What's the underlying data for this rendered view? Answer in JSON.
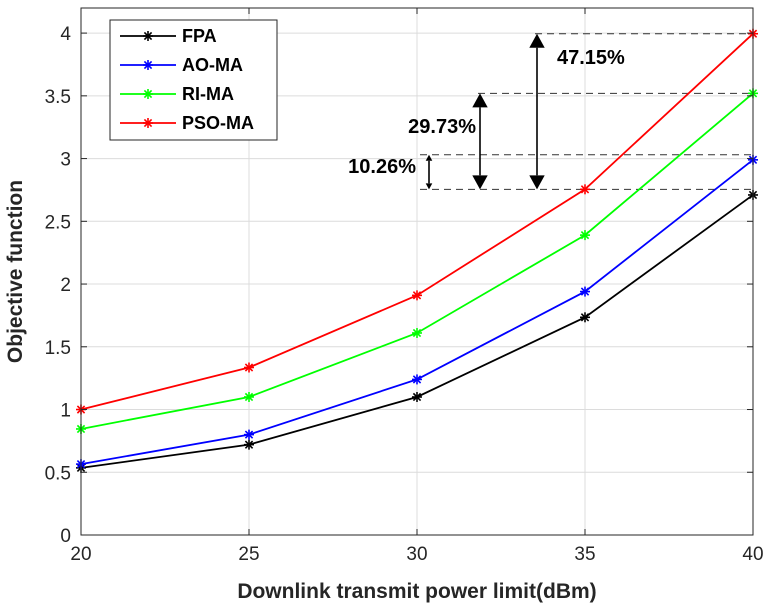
{
  "chart_data": {
    "type": "line",
    "title": "",
    "xlabel": "Downlink transmit power limit(dBm)",
    "ylabel": "Objective function",
    "x": [
      20,
      25,
      30,
      35,
      40
    ],
    "xticks": [
      20,
      25,
      30,
      35,
      40
    ],
    "yticks": [
      0,
      0.5,
      1,
      1.5,
      2,
      2.5,
      3,
      3.5,
      4
    ],
    "xlim": [
      20,
      40
    ],
    "ylim": [
      0,
      4.2
    ],
    "grid": true,
    "legend_position": "top-left",
    "series": [
      {
        "name": "FPA",
        "color": "#000000",
        "marker": "asterisk",
        "values": [
          0.535,
          0.72,
          1.1,
          1.735,
          2.71
        ]
      },
      {
        "name": "AO-MA",
        "color": "#0000ff",
        "marker": "asterisk",
        "values": [
          0.565,
          0.8,
          1.24,
          1.94,
          2.99
        ]
      },
      {
        "name": "RI-MA",
        "color": "#00ff00",
        "marker": "asterisk",
        "values": [
          0.845,
          1.1,
          1.61,
          2.39,
          3.52
        ]
      },
      {
        "name": "PSO-MA",
        "color": "#ff0000",
        "marker": "asterisk",
        "values": [
          1.0,
          1.335,
          1.91,
          2.755,
          3.995
        ]
      }
    ],
    "annotations": [
      {
        "text": "10.26%",
        "y_from": 2.755,
        "y_to": 3.03
      },
      {
        "text": "29.73%",
        "y_from": 2.755,
        "y_to": 3.52
      },
      {
        "text": "47.15%",
        "y_from": 2.755,
        "y_to": 3.995
      }
    ]
  }
}
